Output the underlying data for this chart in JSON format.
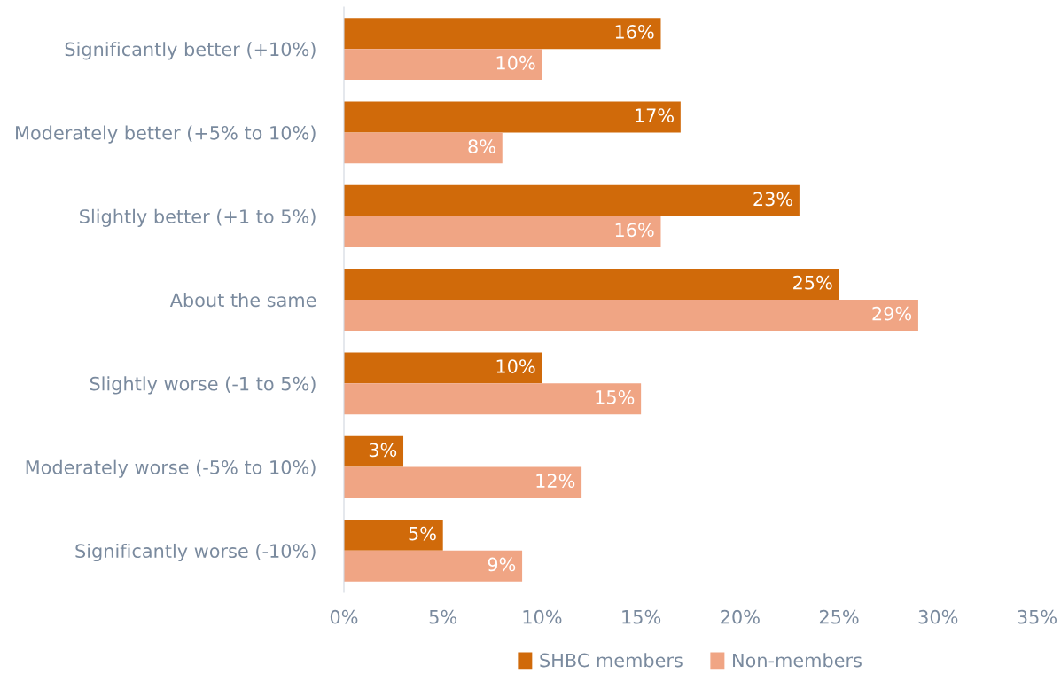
{
  "chart_data": {
    "type": "bar",
    "orientation": "horizontal",
    "categories": [
      "Significantly better (+10%)",
      "Moderately better (+5% to 10%)",
      "Slightly better (+1 to 5%)",
      "About the same",
      "Slightly worse (-1 to 5%)",
      "Moderately worse (-5% to 10%)",
      "Significantly worse (-10%)"
    ],
    "series": [
      {
        "name": "SHBC members",
        "color": "#d06a0a",
        "values": [
          16,
          17,
          23,
          25,
          10,
          3,
          5
        ],
        "value_labels": [
          "16%",
          "17%",
          "23%",
          "25%",
          "10%",
          "3%",
          "5%"
        ]
      },
      {
        "name": "Non-members",
        "color": "#f0a584",
        "values": [
          10,
          8,
          16,
          29,
          15,
          12,
          9
        ],
        "value_labels": [
          "10%",
          "8%",
          "16%",
          "29%",
          "15%",
          "12%",
          "9%"
        ]
      }
    ],
    "xlim": [
      0,
      35
    ],
    "xticks": [
      {
        "value": 0,
        "label": "0%"
      },
      {
        "value": 5,
        "label": "5%"
      },
      {
        "value": 10,
        "label": "10%"
      },
      {
        "value": 15,
        "label": "15%"
      },
      {
        "value": 20,
        "label": "20%"
      },
      {
        "value": 25,
        "label": "25%"
      },
      {
        "value": 30,
        "label": "30%"
      },
      {
        "value": 35,
        "label": "35%"
      }
    ],
    "grid": false,
    "legend": "bottom"
  }
}
